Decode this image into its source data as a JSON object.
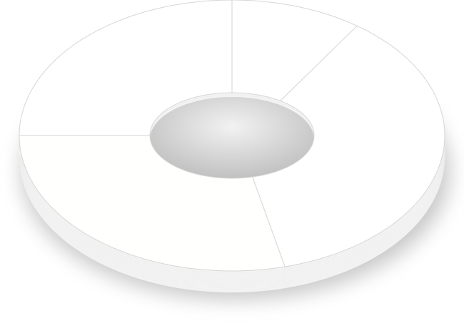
{
  "chart_data": {
    "type": "pie",
    "donut": true,
    "three_d": true,
    "values": [
      10,
      36,
      29,
      25
    ],
    "colors": [
      "#ffffff",
      "#ffffff",
      "#fffffd",
      "#ffffff"
    ],
    "start_angle": 90,
    "clockwise": true
  }
}
